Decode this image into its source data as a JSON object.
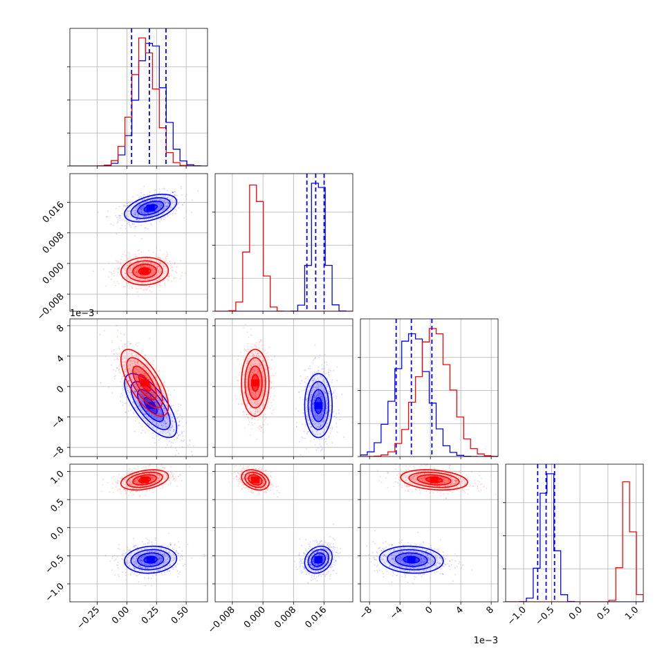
{
  "chart_data": {
    "type": "corner",
    "colors": {
      "series_a": "#0000ff",
      "series_b": "#ff0000",
      "grid": "#b0b0b0"
    },
    "grid": true,
    "n_params": 4,
    "series": [
      {
        "color": "#0000ff",
        "mean": [
          0.2,
          0.0145,
          -0.0025,
          -0.57
        ],
        "sd": [
          0.11,
          0.0018,
          0.0021,
          0.12
        ]
      },
      {
        "color": "#ff0000",
        "mean": [
          0.15,
          -0.002,
          0.0005,
          0.85
        ],
        "sd": [
          0.1,
          0.0018,
          0.0022,
          0.09
        ]
      }
    ],
    "quantile_lines": {
      "color": "#0000ff",
      "style": "dashed",
      "values": [
        [
          0.04,
          0.19,
          0.33
        ],
        [
          0.0115,
          0.0138,
          0.016
        ],
        [
          -0.0045,
          -0.0025,
          0.0002
        ],
        [
          -0.75,
          -0.6,
          -0.45
        ]
      ]
    },
    "params": [
      {
        "range": [
          -0.48,
          0.68
        ],
        "ticks": [
          -0.25,
          0.0,
          0.25,
          0.5
        ],
        "tick_labels": [
          "−0.25",
          "0.00",
          "0.25",
          "0.50"
        ]
      },
      {
        "range": [
          -0.0125,
          0.0235
        ],
        "ticks": [
          -0.008,
          0.0,
          0.008,
          0.016
        ],
        "tick_labels": [
          "−0.008",
          "0.000",
          "0.008",
          "0.016"
        ]
      },
      {
        "range": [
          -0.0092,
          0.0089
        ],
        "ticks": [
          -0.008,
          -0.004,
          0.0,
          0.004,
          0.008
        ],
        "tick_labels": [
          "−8",
          "−4",
          "0",
          "4",
          "8"
        ],
        "offset_label": "1e−3"
      },
      {
        "range": [
          -1.32,
          1.13
        ],
        "ticks": [
          -1.0,
          -0.5,
          0.0,
          0.5,
          1.0
        ],
        "tick_labels": [
          "−1.0",
          "−0.5",
          "0.0",
          "0.5",
          "1.0"
        ]
      }
    ]
  }
}
